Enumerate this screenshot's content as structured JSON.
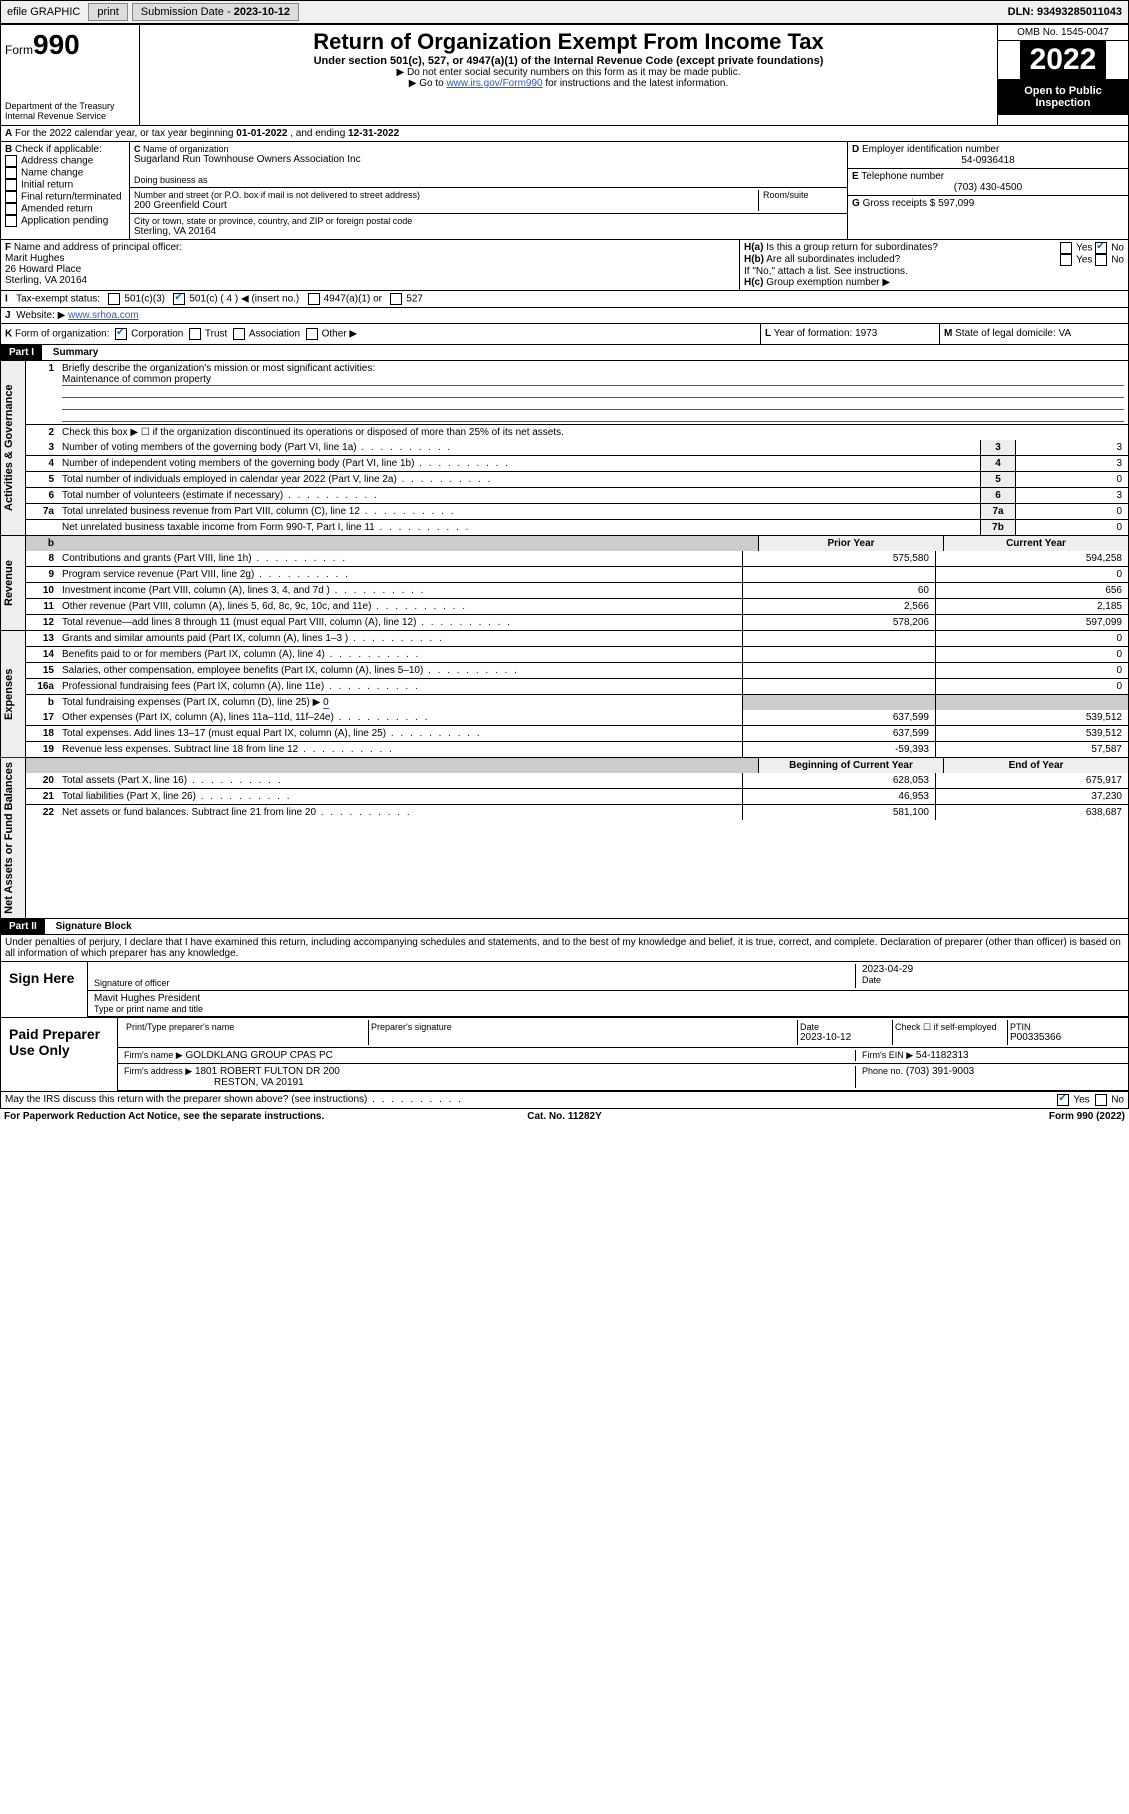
{
  "topbar": {
    "efile": "efile GRAPHIC",
    "print": "print",
    "sub_lbl": "Submission Date - ",
    "sub_date": "2023-10-12",
    "dln": "DLN: 93493285011043"
  },
  "header": {
    "form": "Form",
    "form_no": "990",
    "dept": "Department of the Treasury",
    "irs": "Internal Revenue Service",
    "title": "Return of Organization Exempt From Income Tax",
    "subtitle": "Under section 501(c), 527, or 4947(a)(1) of the Internal Revenue Code (except private foundations)",
    "note1": "▶ Do not enter social security numbers on this form as it may be made public.",
    "note2a": "▶ Go to ",
    "note2_link": "www.irs.gov/Form990",
    "note2b": " for instructions and the latest information.",
    "omb": "OMB No. 1545-0047",
    "year": "2022",
    "inspect": "Open to Public Inspection"
  },
  "A": {
    "text": "For the 2022 calendar year, or tax year beginning ",
    "begin": "01-01-2022",
    "mid": " , and ending ",
    "end": "12-31-2022"
  },
  "B": {
    "lbl": "Check if applicable:",
    "addr": "Address change",
    "name": "Name change",
    "init": "Initial return",
    "final": "Final return/terminated",
    "amend": "Amended return",
    "app": "Application pending"
  },
  "C": {
    "name_lbl": "Name of organization",
    "name": "Sugarland Run Townhouse Owners Association Inc",
    "dba_lbl": "Doing business as",
    "street_lbl": "Number and street (or P.O. box if mail is not delivered to street address)",
    "room_lbl": "Room/suite",
    "street": "200 Greenfield Court",
    "city_lbl": "City or town, state or province, country, and ZIP or foreign postal code",
    "city": "Sterling, VA  20164"
  },
  "D": {
    "lbl": "Employer identification number",
    "val": "54-0936418"
  },
  "E": {
    "lbl": "Telephone number",
    "val": "(703) 430-4500"
  },
  "G": {
    "lbl": "Gross receipts $",
    "val": "597,099"
  },
  "F": {
    "lbl": "Name and address of principal officer:",
    "name": "Marit Hughes",
    "addr1": "26 Howard Place",
    "addr2": "Sterling, VA  20164"
  },
  "H": {
    "a": "Is this a group return for subordinates?",
    "b": "Are all subordinates included?",
    "note": "If \"No,\" attach a list. See instructions.",
    "c": "Group exemption number ▶",
    "yes": "Yes",
    "no": "No"
  },
  "I": {
    "lbl": "Tax-exempt status:",
    "o1": "501(c)(3)",
    "o2": "501(c) ( 4 ) ◀ (insert no.)",
    "o3": "4947(a)(1) or",
    "o4": "527"
  },
  "J": {
    "lbl": "Website: ▶",
    "val": "www.srhoa.com"
  },
  "K": {
    "lbl": "Form of organization:",
    "corp": "Corporation",
    "trust": "Trust",
    "assoc": "Association",
    "other": "Other ▶"
  },
  "L": {
    "lbl": "Year of formation:",
    "val": "1973"
  },
  "M": {
    "lbl": "State of legal domicile:",
    "val": "VA"
  },
  "part1": {
    "bar": "Part I",
    "title": "Summary"
  },
  "tabs": {
    "gov": "Activities & Governance",
    "rev": "Revenue",
    "exp": "Expenses",
    "net": "Net Assets or Fund Balances"
  },
  "s1": {
    "lbl": "Briefly describe the organization's mission or most significant activities:",
    "val": "Maintenance of common property"
  },
  "s2": "Check this box ▶ ☐  if the organization discontinued its operations or disposed of more than 25% of its net assets.",
  "lines_gov": [
    {
      "n": "3",
      "d": "Number of voting members of the governing body (Part VI, line 1a)",
      "b": "3",
      "v": "3"
    },
    {
      "n": "4",
      "d": "Number of independent voting members of the governing body (Part VI, line 1b)",
      "b": "4",
      "v": "3"
    },
    {
      "n": "5",
      "d": "Total number of individuals employed in calendar year 2022 (Part V, line 2a)",
      "b": "5",
      "v": "0"
    },
    {
      "n": "6",
      "d": "Total number of volunteers (estimate if necessary)",
      "b": "6",
      "v": "3"
    },
    {
      "n": "7a",
      "d": "Total unrelated business revenue from Part VIII, column (C), line 12",
      "b": "7a",
      "v": "0"
    },
    {
      "n": "",
      "d": "Net unrelated business taxable income from Form 990-T, Part I, line 11",
      "b": "7b",
      "v": "0"
    }
  ],
  "col_hdr": {
    "prior": "Prior Year",
    "curr": "Current Year",
    "beg": "Beginning of Current Year",
    "end": "End of Year"
  },
  "lines_rev": [
    {
      "n": "8",
      "d": "Contributions and grants (Part VIII, line 1h)",
      "p": "575,580",
      "c": "594,258"
    },
    {
      "n": "9",
      "d": "Program service revenue (Part VIII, line 2g)",
      "p": "",
      "c": "0"
    },
    {
      "n": "10",
      "d": "Investment income (Part VIII, column (A), lines 3, 4, and 7d )",
      "p": "60",
      "c": "656"
    },
    {
      "n": "11",
      "d": "Other revenue (Part VIII, column (A), lines 5, 6d, 8c, 9c, 10c, and 11e)",
      "p": "2,566",
      "c": "2,185"
    },
    {
      "n": "12",
      "d": "Total revenue—add lines 8 through 11 (must equal Part VIII, column (A), line 12)",
      "p": "578,206",
      "c": "597,099"
    }
  ],
  "lines_exp": [
    {
      "n": "13",
      "d": "Grants and similar amounts paid (Part IX, column (A), lines 1–3 )",
      "p": "",
      "c": "0"
    },
    {
      "n": "14",
      "d": "Benefits paid to or for members (Part IX, column (A), line 4)",
      "p": "",
      "c": "0"
    },
    {
      "n": "15",
      "d": "Salaries, other compensation, employee benefits (Part IX, column (A), lines 5–10)",
      "p": "",
      "c": "0"
    },
    {
      "n": "16a",
      "d": "Professional fundraising fees (Part IX, column (A), line 11e)",
      "p": "",
      "c": "0"
    }
  ],
  "line16b": {
    "n": "b",
    "d": "Total fundraising expenses (Part IX, column (D), line 25) ▶",
    "v": "0"
  },
  "lines_exp2": [
    {
      "n": "17",
      "d": "Other expenses (Part IX, column (A), lines 11a–11d, 11f–24e)",
      "p": "637,599",
      "c": "539,512"
    },
    {
      "n": "18",
      "d": "Total expenses. Add lines 13–17 (must equal Part IX, column (A), line 25)",
      "p": "637,599",
      "c": "539,512"
    },
    {
      "n": "19",
      "d": "Revenue less expenses. Subtract line 18 from line 12",
      "p": "-59,393",
      "c": "57,587"
    }
  ],
  "lines_net": [
    {
      "n": "20",
      "d": "Total assets (Part X, line 16)",
      "p": "628,053",
      "c": "675,917"
    },
    {
      "n": "21",
      "d": "Total liabilities (Part X, line 26)",
      "p": "46,953",
      "c": "37,230"
    },
    {
      "n": "22",
      "d": "Net assets or fund balances. Subtract line 21 from line 20",
      "p": "581,100",
      "c": "638,687"
    }
  ],
  "part2": {
    "bar": "Part II",
    "title": "Signature Block"
  },
  "sig_decl": "Under penalties of perjury, I declare that I have examined this return, including accompanying schedules and statements, and to the best of my knowledge and belief, it is true, correct, and complete. Declaration of preparer (other than officer) is based on all information of which preparer has any knowledge.",
  "sign": {
    "here": "Sign Here",
    "sig_lbl": "Signature of officer",
    "date_lbl": "Date",
    "date": "2023-04-29",
    "name": "Mavit Hughes  President",
    "name_lbl": "Type or print name and title"
  },
  "paid": {
    "lbl": "Paid Preparer Use Only",
    "c1": "Print/Type preparer's name",
    "c2": "Preparer's signature",
    "c3": "Date",
    "date": "2023-10-12",
    "c4": "Check ☐ if self-employed",
    "c5": "PTIN",
    "ptin": "P00335366",
    "firm_lbl": "Firm's name   ▶",
    "firm": "GOLDKLANG GROUP CPAS PC",
    "ein_lbl": "Firm's EIN ▶",
    "ein": "54-1182313",
    "addr_lbl": "Firm's address ▶",
    "addr1": "1801 ROBERT FULTON DR 200",
    "addr2": "RESTON, VA  20191",
    "phone_lbl": "Phone no.",
    "phone": "(703) 391-9003"
  },
  "discuss": "May the IRS discuss this return with the preparer shown above? (see instructions)",
  "footer": {
    "left": "For Paperwork Reduction Act Notice, see the separate instructions.",
    "mid": "Cat. No. 11282Y",
    "right": "Form 990 (2022)"
  }
}
